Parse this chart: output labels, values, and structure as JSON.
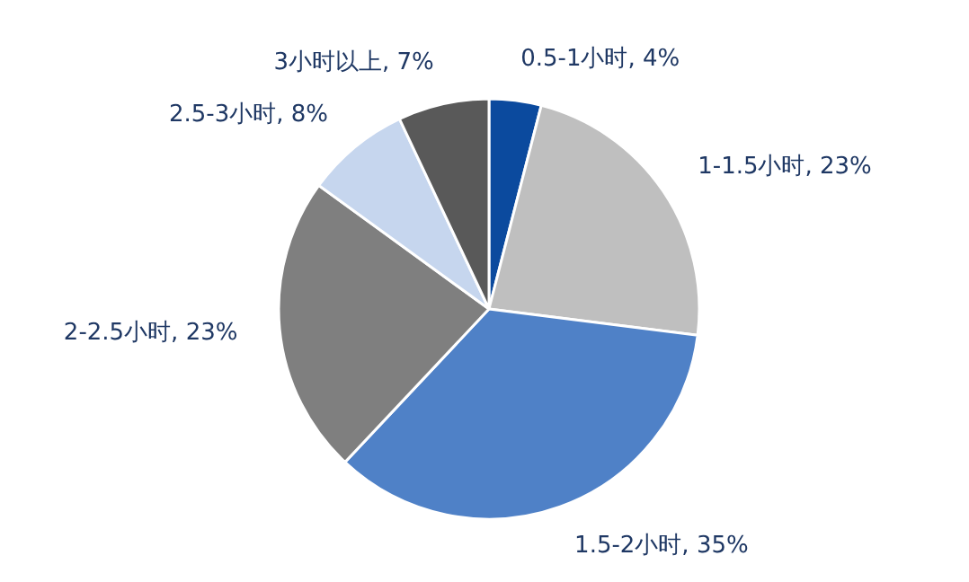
{
  "chart_data": {
    "type": "pie",
    "categories": [
      "0.5-1小时",
      "1-1.5小时",
      "1.5-2小时",
      "2-2.5小时",
      "2.5-3小时",
      "3小时以上"
    ],
    "values": [
      4,
      23,
      35,
      23,
      8,
      7
    ],
    "value_labels": [
      "4%",
      "23%",
      "35%",
      "23%",
      "8%",
      "7%"
    ],
    "colors": [
      "#0b4a9e",
      "#bfbfbf",
      "#4f81c7",
      "#7f7f7f",
      "#c6d6ee",
      "#595959"
    ]
  }
}
